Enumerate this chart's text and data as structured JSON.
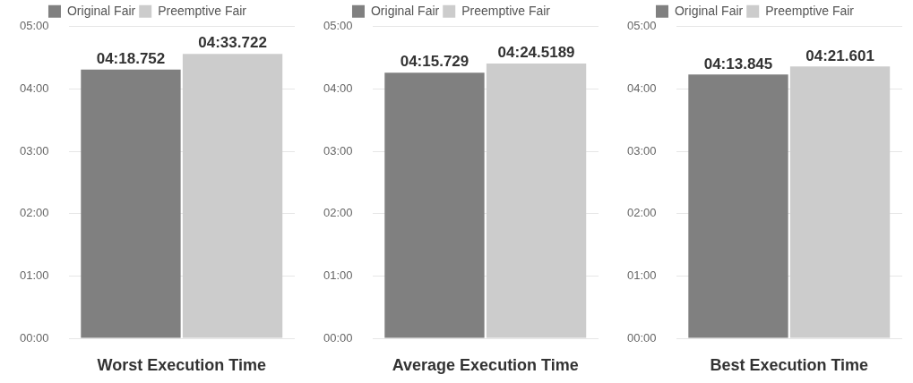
{
  "chart_data": [
    {
      "type": "bar",
      "xlabel": "Worst Execution Time",
      "categories": [
        null
      ],
      "series": [
        {
          "name": "Original Fair",
          "color": "#808080",
          "values": [
            258.752
          ],
          "value_labels": [
            "04:18.752"
          ]
        },
        {
          "name": "Preemptive Fair",
          "color": "#cccccc",
          "values": [
            273.722
          ],
          "value_labels": [
            "04:33.722"
          ]
        }
      ],
      "ylim": [
        0,
        300
      ],
      "yticks": [
        {
          "value": 0,
          "label": "00:00"
        },
        {
          "value": 60,
          "label": "01:00"
        },
        {
          "value": 120,
          "label": "02:00"
        },
        {
          "value": 180,
          "label": "03:00"
        },
        {
          "value": 240,
          "label": "04:00"
        },
        {
          "value": 300,
          "label": "05:00"
        }
      ],
      "grid": "y",
      "legend": "top"
    },
    {
      "type": "bar",
      "xlabel": "Average Execution Time",
      "categories": [
        null
      ],
      "series": [
        {
          "name": "Original Fair",
          "color": "#808080",
          "values": [
            255.729
          ],
          "value_labels": [
            "04:15.729"
          ]
        },
        {
          "name": "Preemptive Fair",
          "color": "#cccccc",
          "values": [
            264.5189
          ],
          "value_labels": [
            "04:24.5189"
          ]
        }
      ],
      "ylim": [
        0,
        300
      ],
      "yticks": [
        {
          "value": 0,
          "label": "00:00"
        },
        {
          "value": 60,
          "label": "01:00"
        },
        {
          "value": 120,
          "label": "02:00"
        },
        {
          "value": 180,
          "label": "03:00"
        },
        {
          "value": 240,
          "label": "04:00"
        },
        {
          "value": 300,
          "label": "05:00"
        }
      ],
      "grid": "y",
      "legend": "top"
    },
    {
      "type": "bar",
      "xlabel": "Best Execution Time",
      "categories": [
        null
      ],
      "series": [
        {
          "name": "Original Fair",
          "color": "#808080",
          "values": [
            253.845
          ],
          "value_labels": [
            "04:13.845"
          ]
        },
        {
          "name": "Preemptive Fair",
          "color": "#cccccc",
          "values": [
            261.601
          ],
          "value_labels": [
            "04:21.601"
          ]
        }
      ],
      "ylim": [
        0,
        300
      ],
      "yticks": [
        {
          "value": 0,
          "label": "00:00"
        },
        {
          "value": 60,
          "label": "01:00"
        },
        {
          "value": 120,
          "label": "02:00"
        },
        {
          "value": 180,
          "label": "03:00"
        },
        {
          "value": 240,
          "label": "04:00"
        },
        {
          "value": 300,
          "label": "05:00"
        }
      ],
      "grid": "y",
      "legend": "top"
    }
  ]
}
